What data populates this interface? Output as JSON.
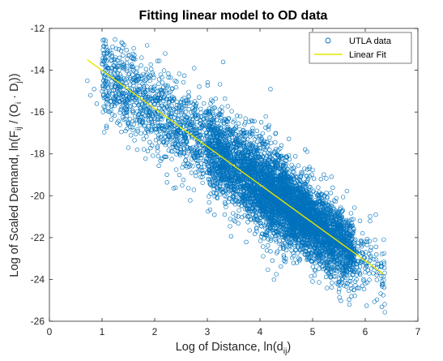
{
  "chart_data": {
    "type": "scatter",
    "title": "Fitting linear model to OD data",
    "xlabel": {
      "prefix": "Log of Distance, ln(d",
      "sub": "ij",
      "suffix": ")"
    },
    "ylabel": {
      "p1": "Log of Scaled Demand, ln(F",
      "s1": "ij",
      "p2": " / (O",
      "s2": "i",
      "p3": " · D",
      "s3": "j",
      "p4": "))"
    },
    "xlim": [
      0,
      7
    ],
    "ylim": [
      -26,
      -12
    ],
    "xticks": [
      0,
      1,
      2,
      3,
      4,
      5,
      6,
      7
    ],
    "yticks": [
      -26,
      -24,
      -22,
      -20,
      -18,
      -16,
      -14,
      -12
    ],
    "grid": false,
    "legend_position": "top-right",
    "series": [
      {
        "name": "UTLA data",
        "kind": "scatter",
        "color": "#0072BD",
        "sample_points": [
          [
            0.72,
            -14.5
          ],
          [
            0.78,
            -15.2
          ],
          [
            0.85,
            -14.9
          ],
          [
            0.9,
            -15.6
          ],
          [
            1.0,
            -15.0
          ],
          [
            1.05,
            -14.8
          ],
          [
            1.1,
            -15.4
          ],
          [
            1.2,
            -15.1
          ],
          [
            1.3,
            -14.7
          ],
          [
            1.35,
            -15.9
          ],
          [
            1.5,
            -15.3
          ],
          [
            1.6,
            -14.6
          ],
          [
            1.7,
            -16.1
          ],
          [
            1.75,
            -13.4
          ],
          [
            1.8,
            -15.8
          ],
          [
            1.9,
            -16.5
          ],
          [
            2.0,
            -15.6
          ],
          [
            2.1,
            -16.9
          ],
          [
            2.2,
            -13.2
          ],
          [
            2.3,
            -16.2
          ],
          [
            2.4,
            -17.3
          ],
          [
            2.5,
            -15.9
          ],
          [
            2.6,
            -18.1
          ],
          [
            2.7,
            -16.8
          ],
          [
            2.75,
            -13.9
          ],
          [
            2.8,
            -17.6
          ],
          [
            2.9,
            -18.8
          ],
          [
            3.0,
            -16.7
          ],
          [
            3.1,
            -19.2
          ],
          [
            3.2,
            -17.9
          ],
          [
            3.3,
            -13.6
          ],
          [
            3.4,
            -18.6
          ],
          [
            3.5,
            -20.1
          ],
          [
            3.6,
            -17.1
          ],
          [
            3.7,
            -19.6
          ],
          [
            3.8,
            -20.8
          ],
          [
            3.9,
            -18.4
          ],
          [
            4.0,
            -21.3
          ],
          [
            4.1,
            -19.9
          ],
          [
            4.2,
            -14.9
          ],
          [
            4.3,
            -21.7
          ],
          [
            4.4,
            -20.4
          ],
          [
            4.5,
            -22.6
          ],
          [
            4.6,
            -19.3
          ],
          [
            4.7,
            -23.2
          ],
          [
            4.8,
            -21.4
          ],
          [
            4.9,
            -22.1
          ],
          [
            5.0,
            -24.1
          ],
          [
            5.1,
            -20.7
          ],
          [
            5.2,
            -22.9
          ],
          [
            5.3,
            -23.7
          ],
          [
            5.4,
            -21.5
          ],
          [
            5.5,
            -24.6
          ],
          [
            5.6,
            -22.4
          ],
          [
            5.7,
            -25.2
          ],
          [
            5.8,
            -23.1
          ],
          [
            5.9,
            -21.2
          ],
          [
            6.0,
            -24.2
          ],
          [
            6.1,
            -22.6
          ],
          [
            6.2,
            -20.9
          ],
          [
            6.3,
            -23.4
          ],
          [
            6.35,
            -22.1
          ]
        ]
      },
      {
        "name": "Linear Fit",
        "kind": "line",
        "color": "#E6E600",
        "x": [
          0.72,
          6.35
        ],
        "y": [
          -13.5,
          -23.75
        ]
      }
    ]
  }
}
